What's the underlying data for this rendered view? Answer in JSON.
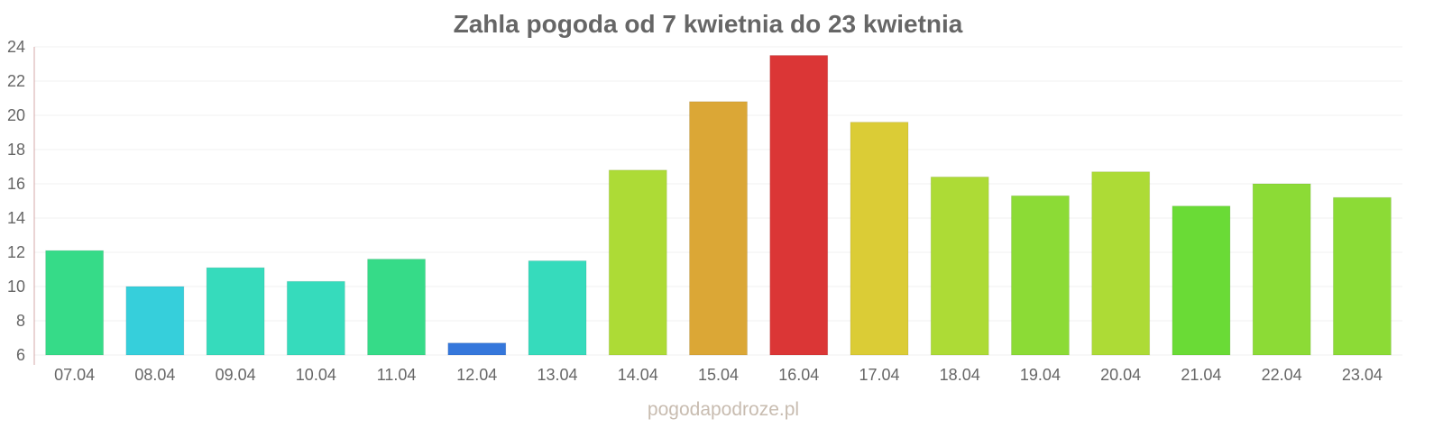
{
  "chart_data": {
    "type": "bar",
    "title": "Zahla pogoda od 7 kwietnia do 23 kwietnia",
    "xlabel": "",
    "ylabel": "",
    "ylim": [
      6,
      24
    ],
    "yticks": [
      6,
      8,
      10,
      12,
      14,
      16,
      18,
      20,
      22,
      24
    ],
    "grid": true,
    "categories": [
      "07.04",
      "08.04",
      "09.04",
      "10.04",
      "11.04",
      "12.04",
      "13.04",
      "14.04",
      "15.04",
      "16.04",
      "17.04",
      "18.04",
      "19.04",
      "20.04",
      "21.04",
      "22.04",
      "23.04"
    ],
    "values": [
      12.1,
      10.0,
      11.1,
      10.3,
      11.6,
      6.7,
      11.5,
      16.8,
      20.8,
      23.5,
      19.6,
      16.4,
      15.3,
      16.7,
      14.7,
      16.0,
      15.2
    ],
    "colors": [
      "#36db88",
      "#36cfdb",
      "#36dbbc",
      "#36dbbc",
      "#36db88",
      "#3577db",
      "#36dbbc",
      "#addb36",
      "#dba736",
      "#db3636",
      "#dbcc36",
      "#addb36",
      "#8cdb36",
      "#addb36",
      "#6adb36",
      "#8cdb36",
      "#8cdb36"
    ]
  },
  "watermark": "pogodapodroze.pl"
}
